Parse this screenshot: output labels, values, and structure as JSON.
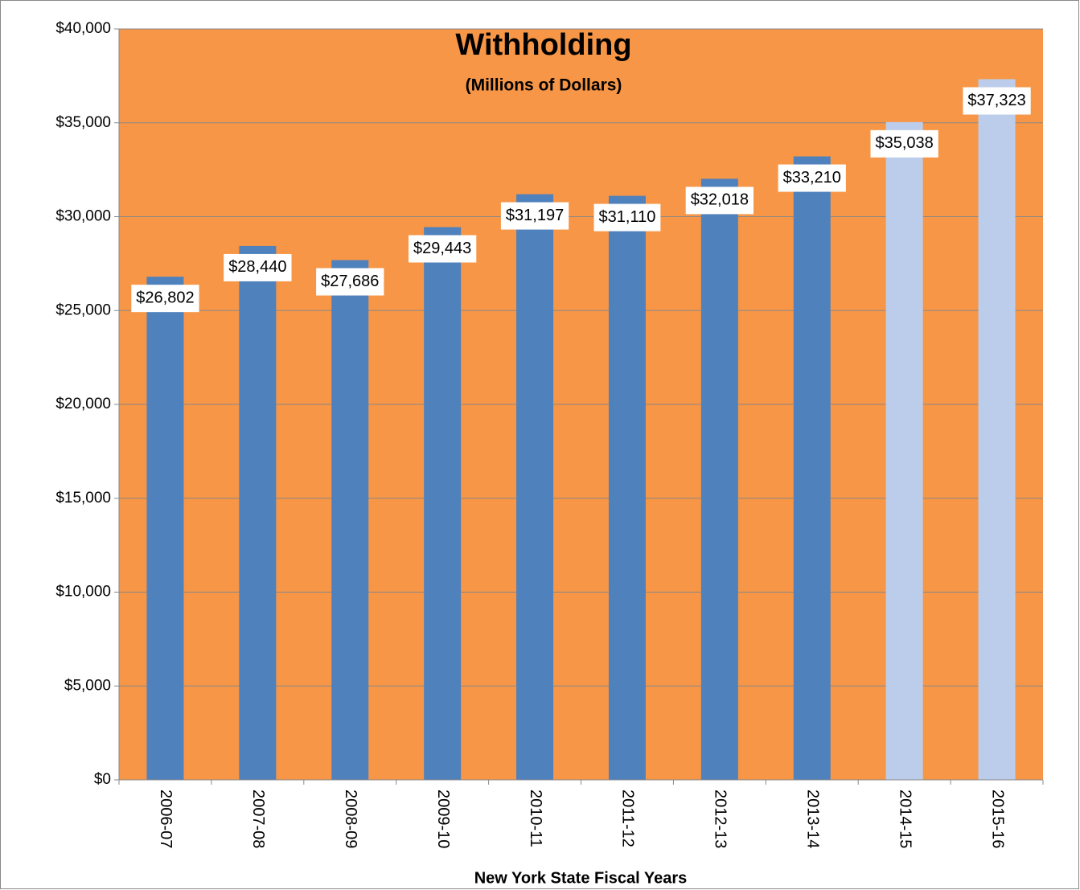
{
  "chart_data": {
    "type": "bar",
    "title": "Withholding",
    "subtitle": "(Millions of Dollars)",
    "x_label": "New York State Fiscal Years",
    "categories": [
      "2006-07",
      "2007-08",
      "2008-09",
      "2009-10",
      "2010-11",
      "2011-12",
      "2012-13",
      "2013-14",
      "2014-15",
      "2015-16"
    ],
    "values": [
      26802,
      28440,
      27686,
      29443,
      31197,
      31110,
      32018,
      33210,
      35038,
      37323
    ],
    "value_labels": [
      "$26,802",
      "$28,440",
      "$27,686",
      "$29,443",
      "$31,197",
      "$31,110",
      "$32,018",
      "$33,210",
      "$35,038",
      "$37,323"
    ],
    "colors": [
      "#4f81bd",
      "#4f81bd",
      "#4f81bd",
      "#4f81bd",
      "#4f81bd",
      "#4f81bd",
      "#4f81bd",
      "#4f81bd",
      "#bccdeb",
      "#bccdeb"
    ],
    "background": "#f79646",
    "ylim": [
      0,
      40000
    ],
    "yticks": [
      {
        "value": 0,
        "label": "$0"
      },
      {
        "value": 5000,
        "label": "$5,000"
      },
      {
        "value": 10000,
        "label": "$10,000"
      },
      {
        "value": 15000,
        "label": "$15,000"
      },
      {
        "value": 20000,
        "label": "$20,000"
      },
      {
        "value": 25000,
        "label": "$25,000"
      },
      {
        "value": 30000,
        "label": "$30,000"
      },
      {
        "value": 35000,
        "label": "$35,000"
      },
      {
        "value": 40000,
        "label": "$40,000"
      }
    ],
    "grid": true
  }
}
